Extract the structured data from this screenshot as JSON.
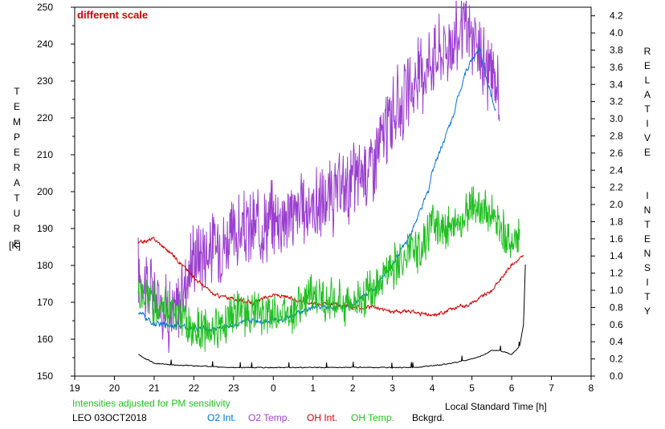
{
  "chart_data": {
    "type": "line",
    "annotation": "different scale",
    "ylabel_left": "TEMPERATURE",
    "ylabel_left_unit": "[K]",
    "ylabel_right": "RELATIVE INTENSITY",
    "xlabel": "Local Standard Time [h]",
    "note": "Intensities adjusted for PM sensitivity",
    "station": "LEO 03OCT2018",
    "grid": false,
    "x_range": [
      19,
      8
    ],
    "x_ticks": [
      "19",
      "20",
      "21",
      "22",
      "23",
      "0",
      "1",
      "2",
      "3",
      "4",
      "5",
      "6",
      "7",
      "8"
    ],
    "ylim_left": [
      150,
      250
    ],
    "ylim_right": [
      0.0,
      4.3
    ],
    "y_ticks_left": [
      "150",
      "160",
      "170",
      "180",
      "190",
      "200",
      "210",
      "220",
      "230",
      "240",
      "250"
    ],
    "y_ticks_right": [
      "0.0",
      "0.2",
      "0.4",
      "0.6",
      "0.8",
      "1.0",
      "1.2",
      "1.4",
      "1.6",
      "1.8",
      "2.0",
      "2.2",
      "2.4",
      "2.6",
      "2.8",
      "3.0",
      "3.2",
      "3.4",
      "3.6",
      "3.8",
      "4.0",
      "4.2"
    ],
    "legend": [
      {
        "label": "O2 Int.",
        "color": "#0070e0"
      },
      {
        "label": "O2 Temp.",
        "color": "#9b3fd0"
      },
      {
        "label": "OH Int.",
        "color": "#d40000"
      },
      {
        "label": "OH Temp.",
        "color": "#20c020"
      },
      {
        "label": "Bckgrd.",
        "color": "#000000"
      }
    ],
    "series": [
      {
        "name": "O2 Temp.",
        "axis": "left",
        "color": "#9b3fd0",
        "points": [
          [
            20.6,
            178
          ],
          [
            21.0,
            172
          ],
          [
            21.5,
            166
          ],
          [
            22.0,
            183
          ],
          [
            22.5,
            185
          ],
          [
            23.0,
            188
          ],
          [
            23.5,
            190
          ],
          [
            0.0,
            193
          ],
          [
            0.5,
            194
          ],
          [
            1.0,
            196
          ],
          [
            1.5,
            198
          ],
          [
            2.0,
            203
          ],
          [
            2.5,
            208
          ],
          [
            3.0,
            221
          ],
          [
            3.5,
            228
          ],
          [
            4.0,
            237
          ],
          [
            4.5,
            240
          ],
          [
            4.8,
            245
          ],
          [
            5.0,
            241
          ],
          [
            5.3,
            235
          ],
          [
            5.6,
            229
          ],
          [
            5.7,
            228
          ]
        ],
        "noise": 12
      },
      {
        "name": "O2 Int.",
        "axis": "right",
        "color": "#0070e0",
        "points": [
          [
            20.6,
            0.75
          ],
          [
            21.0,
            0.6
          ],
          [
            21.5,
            0.6
          ],
          [
            22.0,
            0.55
          ],
          [
            22.5,
            0.55
          ],
          [
            23.0,
            0.6
          ],
          [
            23.5,
            0.65
          ],
          [
            0.0,
            0.65
          ],
          [
            0.5,
            0.7
          ],
          [
            1.0,
            0.8
          ],
          [
            1.5,
            0.8
          ],
          [
            2.0,
            0.85
          ],
          [
            2.5,
            1.0
          ],
          [
            3.0,
            1.3
          ],
          [
            3.5,
            1.7
          ],
          [
            3.9,
            2.15
          ],
          [
            4.0,
            2.4
          ],
          [
            4.5,
            3.0
          ],
          [
            4.8,
            3.5
          ],
          [
            5.0,
            3.7
          ],
          [
            5.2,
            3.8
          ],
          [
            5.4,
            3.4
          ],
          [
            5.6,
            3.1
          ]
        ],
        "noise": 0.06
      },
      {
        "name": "OH Int.",
        "axis": "right",
        "color": "#d40000",
        "points": [
          [
            20.6,
            1.55
          ],
          [
            21.0,
            1.6
          ],
          [
            21.5,
            1.4
          ],
          [
            22.0,
            1.15
          ],
          [
            22.5,
            0.95
          ],
          [
            23.0,
            0.9
          ],
          [
            23.5,
            0.85
          ],
          [
            0.0,
            0.95
          ],
          [
            0.5,
            0.9
          ],
          [
            1.0,
            0.85
          ],
          [
            1.5,
            0.85
          ],
          [
            2.0,
            0.8
          ],
          [
            2.5,
            0.8
          ],
          [
            3.0,
            0.75
          ],
          [
            3.5,
            0.75
          ],
          [
            4.0,
            0.7
          ],
          [
            4.5,
            0.78
          ],
          [
            5.0,
            0.85
          ],
          [
            5.5,
            1.0
          ],
          [
            6.0,
            1.3
          ],
          [
            6.3,
            1.4
          ]
        ],
        "noise": 0.04
      },
      {
        "name": "OH Temp.",
        "axis": "left",
        "color": "#20c020",
        "points": [
          [
            20.6,
            172
          ],
          [
            21.0,
            170
          ],
          [
            21.5,
            168
          ],
          [
            22.0,
            162
          ],
          [
            22.5,
            163
          ],
          [
            23.0,
            167
          ],
          [
            23.5,
            167
          ],
          [
            0.0,
            167
          ],
          [
            0.5,
            168
          ],
          [
            1.0,
            172
          ],
          [
            1.5,
            170
          ],
          [
            2.0,
            170
          ],
          [
            2.5,
            174
          ],
          [
            3.0,
            180
          ],
          [
            3.5,
            183
          ],
          [
            3.8,
            186
          ],
          [
            4.0,
            192
          ],
          [
            4.5,
            190
          ],
          [
            4.8,
            192
          ],
          [
            5.0,
            197
          ],
          [
            5.3,
            195
          ],
          [
            5.6,
            193
          ],
          [
            5.9,
            187
          ],
          [
            6.2,
            188
          ]
        ],
        "noise": 7
      },
      {
        "name": "Bckgrd.",
        "axis": "right",
        "color": "#000000",
        "points": [
          [
            20.6,
            0.25
          ],
          [
            21.0,
            0.15
          ],
          [
            21.5,
            0.13
          ],
          [
            22.0,
            0.12
          ],
          [
            22.5,
            0.11
          ],
          [
            23.0,
            0.1
          ],
          [
            23.5,
            0.1
          ],
          [
            0.0,
            0.1
          ],
          [
            0.5,
            0.1
          ],
          [
            1.0,
            0.1
          ],
          [
            1.5,
            0.1
          ],
          [
            2.0,
            0.1
          ],
          [
            2.5,
            0.1
          ],
          [
            3.0,
            0.1
          ],
          [
            3.5,
            0.1
          ],
          [
            4.0,
            0.12
          ],
          [
            4.5,
            0.15
          ],
          [
            5.0,
            0.2
          ],
          [
            5.3,
            0.25
          ],
          [
            5.5,
            0.3
          ],
          [
            5.7,
            0.3
          ],
          [
            6.0,
            0.25
          ],
          [
            6.2,
            0.35
          ],
          [
            6.3,
            0.6
          ],
          [
            6.35,
            1.4
          ]
        ],
        "noise": 0.01
      }
    ]
  }
}
